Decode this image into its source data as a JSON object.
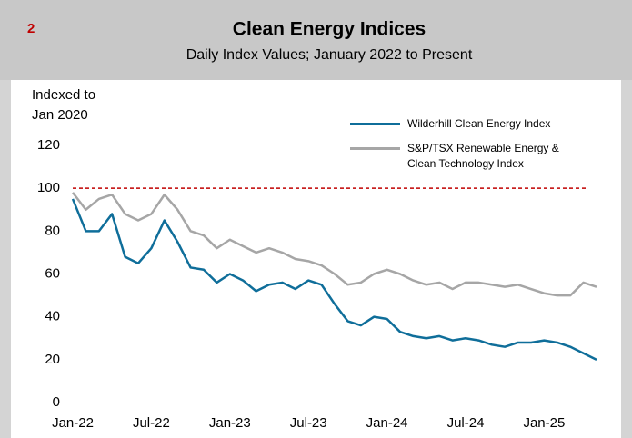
{
  "page_number": "2",
  "chart_data": {
    "type": "line",
    "title": "Clean Energy Indices",
    "subtitle": "Daily Index Values; January 2022 to Present",
    "y_label": [
      "Indexed to",
      "Jan 2020"
    ],
    "categories": [
      "Jan-22",
      null,
      null,
      null,
      null,
      null,
      "Jul-22",
      null,
      null,
      null,
      null,
      null,
      "Jan-23",
      null,
      null,
      null,
      null,
      null,
      "Jul-23",
      null,
      null,
      null,
      null,
      null,
      "Jan-24",
      null,
      null,
      null,
      null,
      null,
      "Jul-24",
      null,
      null,
      null,
      null,
      null,
      "Jan-25",
      null,
      null,
      null,
      null
    ],
    "series": [
      {
        "name": "Wilderhill Clean Energy Index",
        "color": "#0f6e9a",
        "values": [
          95,
          80,
          80,
          88,
          68,
          65,
          72,
          85,
          75,
          63,
          62,
          56,
          60,
          57,
          52,
          55,
          56,
          53,
          57,
          55,
          46,
          38,
          36,
          40,
          39,
          33,
          31,
          30,
          31,
          29,
          30,
          29,
          27,
          26,
          28,
          28,
          29,
          28,
          26,
          23,
          20
        ]
      },
      {
        "name": "S&P/TSX Renewable Energy & Clean Technology Index",
        "color": "#a6a6a6",
        "values": [
          98,
          90,
          95,
          97,
          88,
          85,
          88,
          97,
          90,
          80,
          78,
          72,
          76,
          73,
          70,
          72,
          70,
          67,
          66,
          64,
          60,
          55,
          56,
          60,
          62,
          60,
          57,
          55,
          56,
          53,
          56,
          56,
          55,
          54,
          55,
          53,
          51,
          50,
          50,
          56,
          54
        ]
      }
    ],
    "ylim": [
      0,
      120
    ],
    "yticks": [
      0,
      20,
      40,
      60,
      80,
      100,
      120
    ],
    "reference_line": {
      "value": 100,
      "color": "#c00000"
    },
    "grid": false,
    "legend": "top-right"
  }
}
